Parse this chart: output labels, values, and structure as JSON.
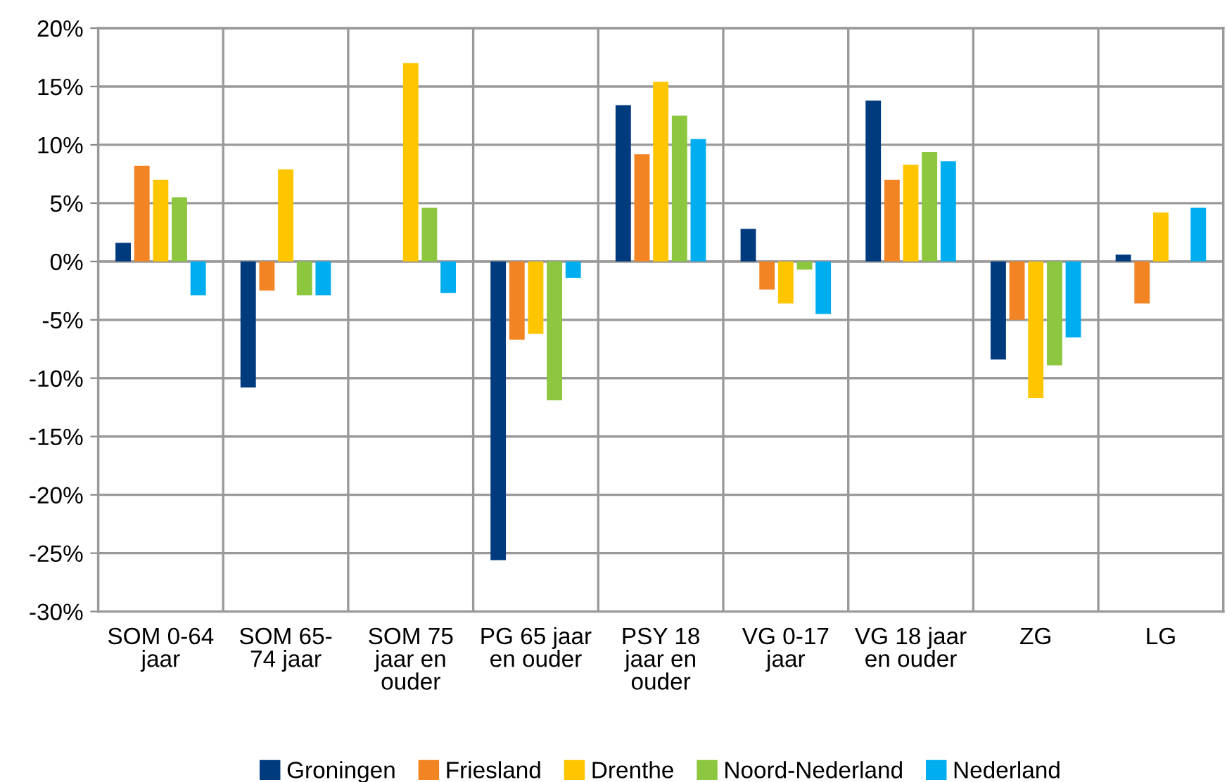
{
  "chart_data": {
    "type": "bar",
    "categories": [
      "SOM 0-64\njaar",
      "SOM 65-\n74 jaar",
      "SOM 75\njaar en\nouder",
      "PG 65 jaar\nen ouder",
      "PSY 18\njaar en\nouder",
      "VG 0-17\njaar",
      "VG 18 jaar\nen ouder",
      "ZG",
      "LG"
    ],
    "series": [
      {
        "name": "Groningen",
        "color": "#003b7e",
        "values": [
          1.6,
          -10.8,
          null,
          -25.6,
          13.4,
          2.8,
          13.8,
          -8.4,
          0.6
        ]
      },
      {
        "name": "Friesland",
        "color": "#f28424",
        "values": [
          8.2,
          -2.5,
          null,
          -6.7,
          9.2,
          -2.4,
          7.0,
          -5.0,
          -3.6
        ]
      },
      {
        "name": "Drenthe",
        "color": "#ffc600",
        "values": [
          7.0,
          7.9,
          17.0,
          -6.2,
          15.4,
          -3.6,
          8.3,
          -11.7,
          4.2
        ]
      },
      {
        "name": "Noord-Nederland",
        "color": "#8dc63f",
        "values": [
          5.5,
          -2.9,
          4.6,
          -11.9,
          12.5,
          -0.7,
          9.4,
          -8.9,
          null
        ]
      },
      {
        "name": "Nederland",
        "color": "#00aeef",
        "values": [
          -2.9,
          -2.9,
          -2.7,
          -1.4,
          10.5,
          -4.5,
          8.6,
          -6.5,
          4.6
        ]
      }
    ],
    "ylim": [
      -30,
      20
    ],
    "yticks": [
      {
        "value": -30,
        "label": "-30%"
      },
      {
        "value": -25,
        "label": "-25%"
      },
      {
        "value": -20,
        "label": "-20%"
      },
      {
        "value": -15,
        "label": "-15%"
      },
      {
        "value": -10,
        "label": "-10%"
      },
      {
        "value": -5,
        "label": "-5%"
      },
      {
        "value": 0,
        "label": "0%"
      },
      {
        "value": 5,
        "label": "5%"
      },
      {
        "value": 10,
        "label": "10%"
      },
      {
        "value": 15,
        "label": "15%"
      },
      {
        "value": 20,
        "label": "20%"
      }
    ],
    "grid": true,
    "legend": "bottom"
  }
}
